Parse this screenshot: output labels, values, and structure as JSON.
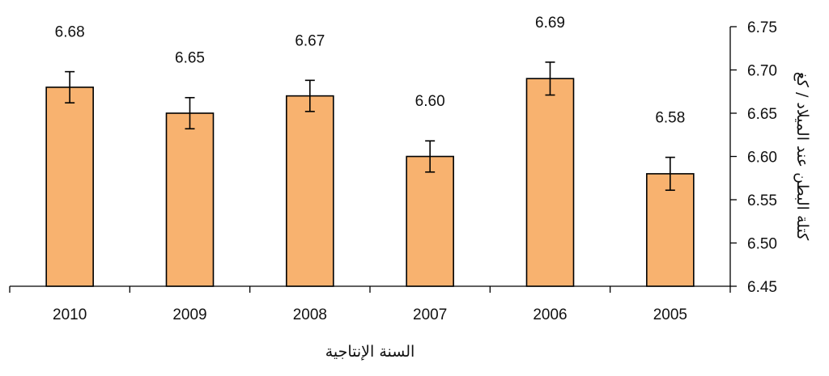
{
  "chart_data": {
    "type": "bar",
    "categories": [
      "2010",
      "2009",
      "2008",
      "2007",
      "2006",
      "2005"
    ],
    "values": [
      6.68,
      6.65,
      6.67,
      6.6,
      6.69,
      6.58
    ],
    "value_labels": [
      "6.68",
      "6.65",
      "6.67",
      "6.60",
      "6.69",
      "6.58"
    ],
    "error": [
      0.018,
      0.018,
      0.018,
      0.018,
      0.019,
      0.019
    ],
    "xlabel": "السنة الإنتاجية",
    "ylabel": "كتلة البطن عند الميلاد / كغ",
    "ylim": [
      6.45,
      6.75
    ],
    "yticks": [
      "6.45",
      "6.50",
      "6.55",
      "6.60",
      "6.65",
      "6.70",
      "6.75"
    ],
    "y_axis_side": "right",
    "x_axis_reversed": true,
    "grid": false,
    "legend": "none",
    "colors": {
      "bar_fill": "#F8B26F",
      "bar_stroke": "#000000",
      "axis": "#000000"
    }
  }
}
